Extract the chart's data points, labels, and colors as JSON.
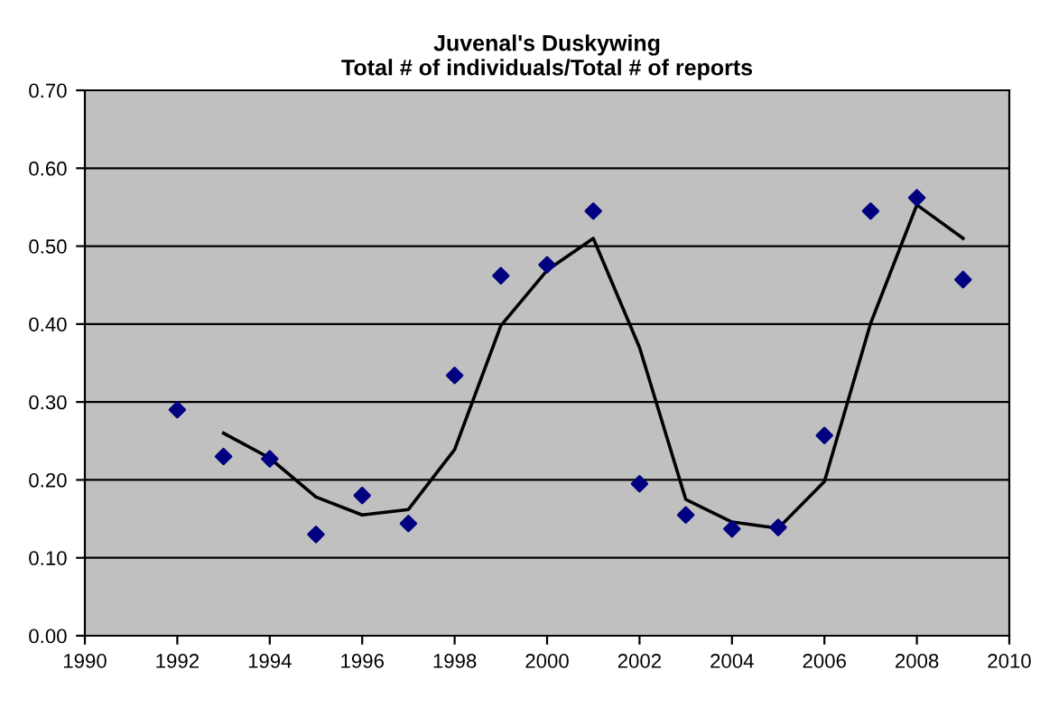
{
  "chart_data": {
    "type": "scatter",
    "title": "Juvenal's Duskywing\nTotal # of individuals/Total # of reports",
    "series": [
      {
        "color": "#000080",
        "marker": "diamond",
        "x": [
          1992,
          1993,
          1994,
          1995,
          1996,
          1997,
          1998,
          1999,
          2000,
          2001,
          2002,
          2003,
          2004,
          2005,
          2006,
          2007,
          2008,
          2009
        ],
        "values": [
          0.29,
          0.23,
          0.227,
          0.13,
          0.18,
          0.144,
          0.334,
          0.462,
          0.476,
          0.545,
          0.195,
          0.155,
          0.137,
          0.139,
          0.257,
          0.545,
          0.562,
          0.457
        ]
      },
      {
        "type": "line",
        "color": "#000000",
        "marker": "none",
        "x": [
          1993,
          1994,
          1995,
          1996,
          1997,
          1998,
          1999,
          2000,
          2001,
          2002,
          2003,
          2004,
          2005,
          2006,
          2007,
          2008,
          2009
        ],
        "values": [
          0.26,
          0.228,
          0.178,
          0.155,
          0.162,
          0.239,
          0.398,
          0.469,
          0.51,
          0.37,
          0.175,
          0.146,
          0.138,
          0.198,
          0.401,
          0.553,
          0.51
        ]
      }
    ],
    "xlim": [
      1990,
      2010
    ],
    "xticks": [
      1990,
      1992,
      1994,
      1996,
      1998,
      2000,
      2002,
      2004,
      2006,
      2008,
      2010
    ],
    "ylim": [
      0,
      0.7
    ],
    "yticks": [
      {
        "value": 0,
        "label": "0.00"
      },
      {
        "value": 0.1,
        "label": "0.10"
      },
      {
        "value": 0.2,
        "label": "0.20"
      },
      {
        "value": 0.3,
        "label": "0.30"
      },
      {
        "value": 0.4,
        "label": "0.40"
      },
      {
        "value": 0.5,
        "label": "0.50"
      },
      {
        "value": 0.6,
        "label": "0.60"
      },
      {
        "value": 0.7,
        "label": "0.70"
      }
    ],
    "grid": "y"
  }
}
